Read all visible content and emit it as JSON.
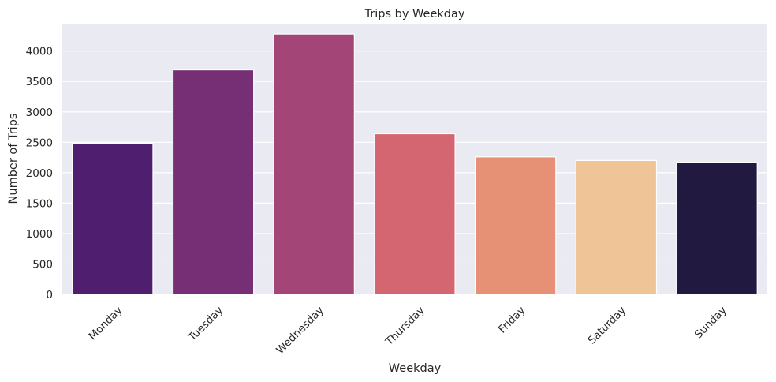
{
  "chart_data": {
    "type": "bar",
    "title": "Trips by Weekday",
    "xlabel": "Weekday",
    "ylabel": "Number of Trips",
    "categories": [
      "Monday",
      "Tuesday",
      "Wednesday",
      "Thursday",
      "Friday",
      "Saturday",
      "Sunday"
    ],
    "values": [
      2480,
      3690,
      4280,
      2640,
      2260,
      2200,
      2170
    ],
    "ylim": [
      0,
      4450
    ],
    "yticks": [
      0,
      500,
      1000,
      1500,
      2000,
      2500,
      3000,
      3500,
      4000
    ],
    "colors": [
      "#501e6e",
      "#762f75",
      "#a44577",
      "#d46671",
      "#e69176",
      "#efc497",
      "#221941"
    ],
    "plot_background": "#eaeaf2",
    "grid": true,
    "legend": false
  }
}
